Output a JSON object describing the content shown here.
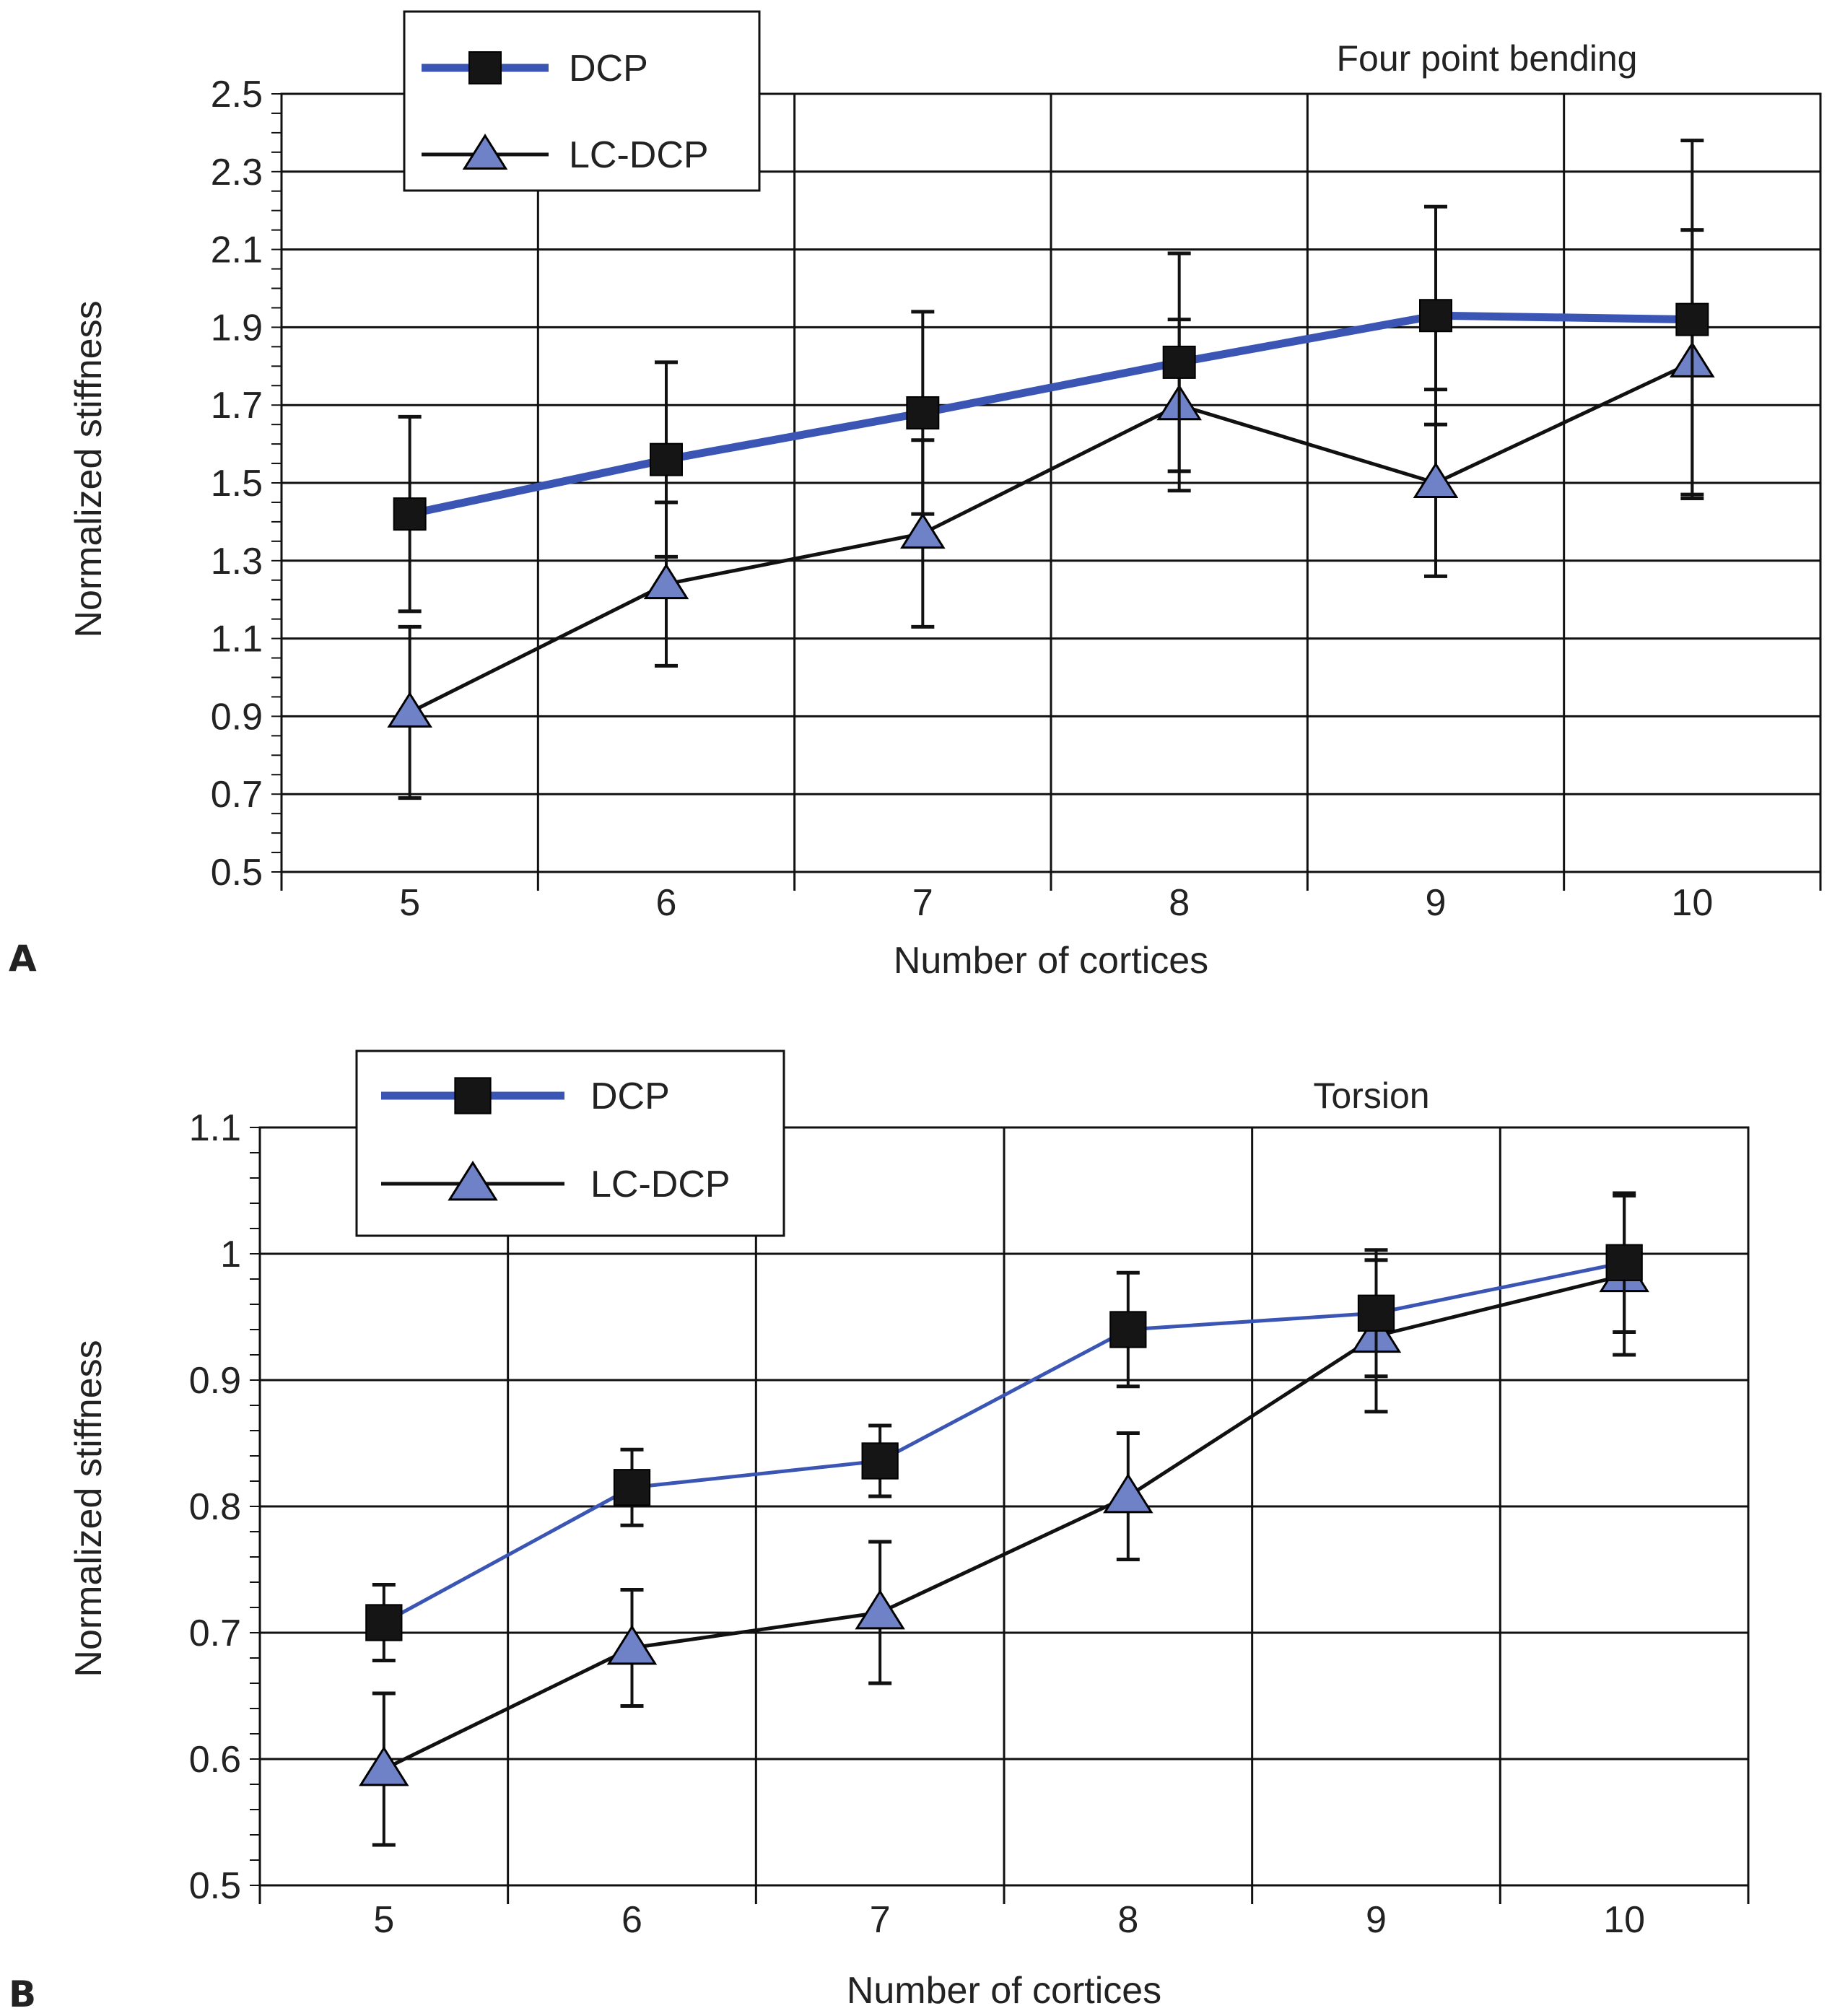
{
  "colors": {
    "dcp": "#3a55b4",
    "lcdcp_line": "#111111",
    "lcdcp_marker": "#6f82c8",
    "grid": "#111111",
    "text": "#222222"
  },
  "chart_data": [
    {
      "type": "line",
      "panel": "A",
      "title": "Four point bending",
      "xlabel": "Number of cortices",
      "ylabel": "Normalized stiffness",
      "categories": [
        "5",
        "6",
        "7",
        "8",
        "9",
        "10"
      ],
      "ylim": [
        0.5,
        2.5
      ],
      "yticks": [
        "0.5",
        "0.7",
        "0.9",
        "1.1",
        "1.3",
        "1.5",
        "1.7",
        "1.9",
        "2.1",
        "2.3",
        "2.5"
      ],
      "grid": true,
      "legend_position": "top-left",
      "series": [
        {
          "name": "DCP",
          "marker": "square",
          "values": [
            1.42,
            1.56,
            1.68,
            1.81,
            1.93,
            1.92
          ],
          "error": [
            0.25,
            0.25,
            0.26,
            0.28,
            0.28,
            0.46
          ]
        },
        {
          "name": "LC-DCP",
          "marker": "triangle",
          "values": [
            0.91,
            1.24,
            1.37,
            1.7,
            1.5,
            1.81
          ],
          "error": [
            0.22,
            0.21,
            0.24,
            0.22,
            0.24,
            0.34
          ]
        }
      ]
    },
    {
      "type": "line",
      "panel": "B",
      "title": "Torsion",
      "xlabel": "Number of cortices",
      "ylabel": "Normalized stiffness",
      "categories": [
        "5",
        "6",
        "7",
        "8",
        "9",
        "10"
      ],
      "ylim": [
        0.5,
        1.1
      ],
      "yticks": [
        "0.5",
        "0.6",
        "0.7",
        "0.8",
        "0.9",
        "1",
        "1.1"
      ],
      "grid": true,
      "legend_position": "top-left",
      "series": [
        {
          "name": "DCP",
          "marker": "square",
          "values": [
            0.708,
            0.815,
            0.836,
            0.94,
            0.953,
            0.993
          ],
          "error": [
            0.03,
            0.03,
            0.028,
            0.045,
            0.05,
            0.055
          ]
        },
        {
          "name": "LC-DCP",
          "marker": "triangle",
          "values": [
            0.592,
            0.688,
            0.716,
            0.808,
            0.935,
            0.983
          ],
          "error": [
            0.06,
            0.046,
            0.056,
            0.05,
            0.06,
            0.063
          ]
        }
      ]
    }
  ]
}
